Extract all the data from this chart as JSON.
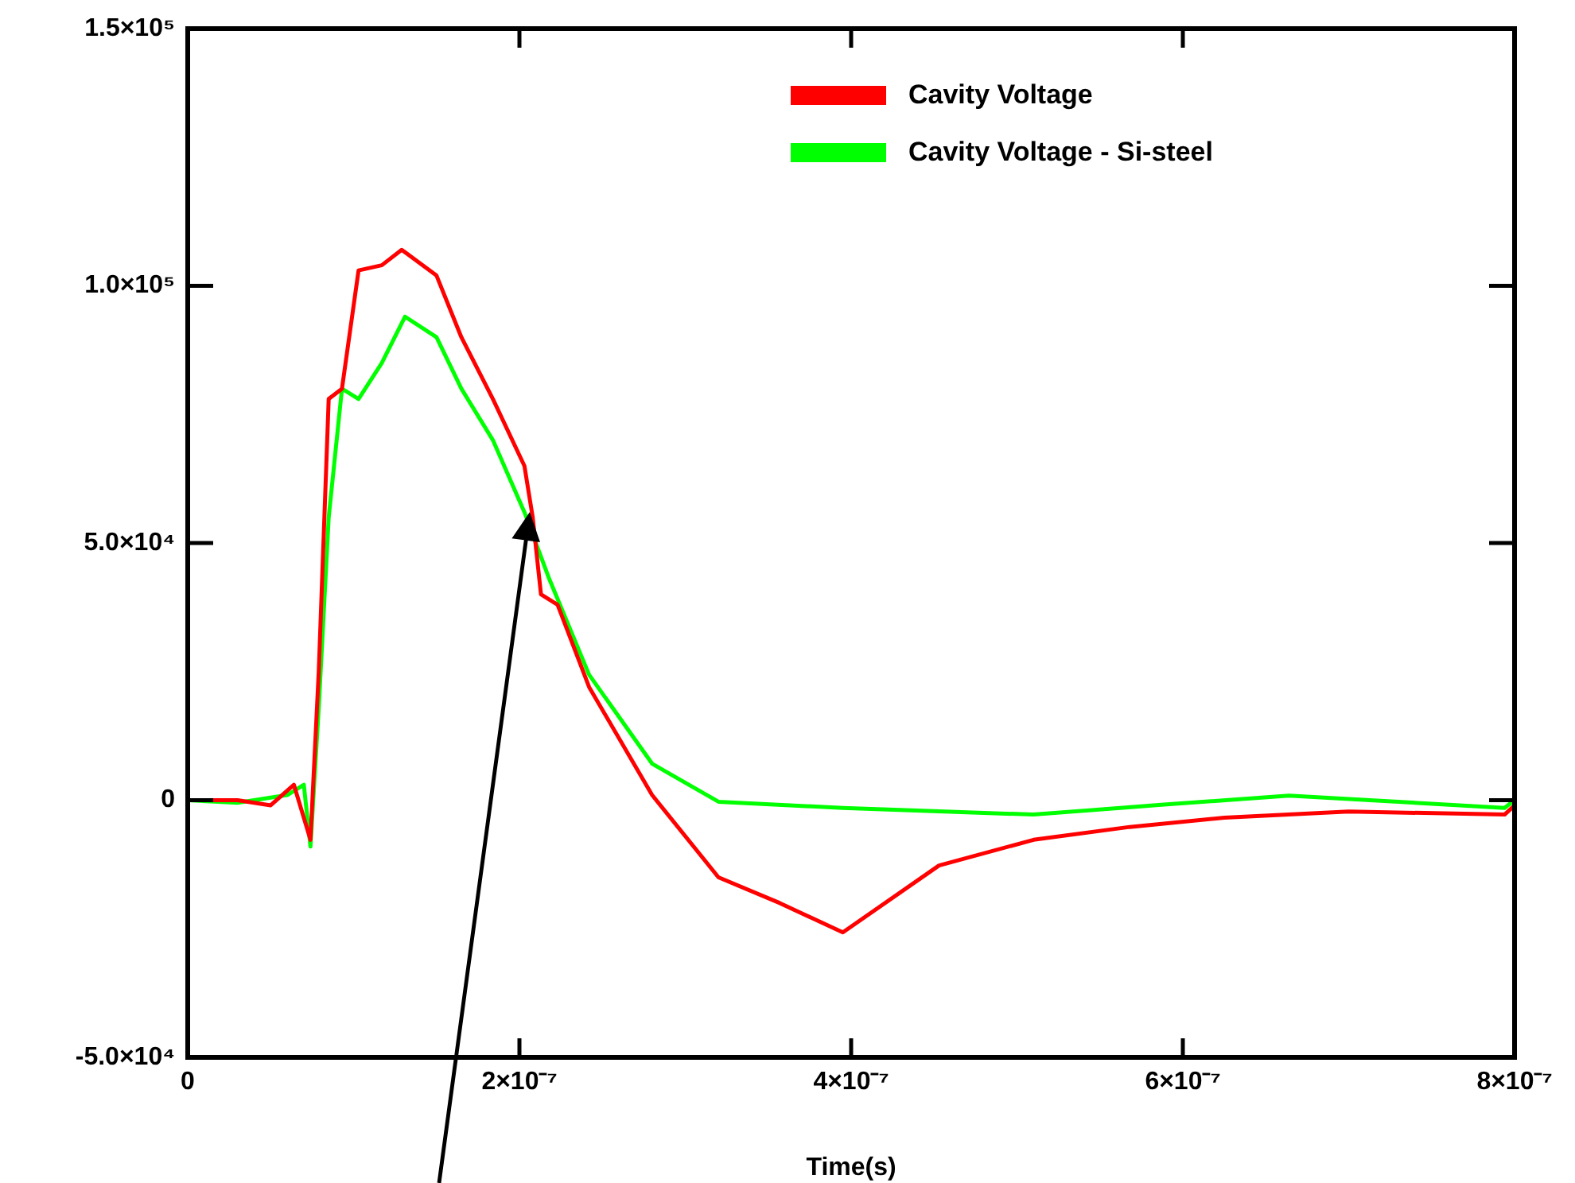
{
  "chart_data": {
    "type": "line",
    "xlabel": "Time(s)",
    "xlim": [
      0,
      8e-07
    ],
    "xticks": [
      0,
      {
        "value": 2e-07,
        "label": "2×10⁻⁷"
      },
      {
        "value": 4e-07,
        "label": "4×10⁻⁷"
      },
      {
        "value": 6e-07,
        "label": "6×10⁻⁷"
      },
      {
        "value": 8e-07,
        "label": "8×10⁻⁷"
      }
    ],
    "ylim": [
      -50000,
      150000
    ],
    "yticks": [
      {
        "value": -50000,
        "label": "-5.0×10⁴"
      },
      0,
      {
        "value": 50000,
        "label": "5.0×10⁴"
      },
      {
        "value": 100000,
        "label": "1.0×10⁵"
      },
      {
        "value": 150000,
        "label": "1.5×10⁵"
      }
    ],
    "grid": false,
    "legend": "top right",
    "marker": "none",
    "line_style": "solid",
    "series": [
      {
        "name": "Cavity Voltage",
        "color": "#ff0000",
        "x": [
          0,
          3e-08,
          5e-08,
          6.4e-08,
          7.4e-08,
          7.9e-08,
          8.5e-08,
          9.3e-08,
          1.03e-07,
          1.17e-07,
          1.29e-07,
          1.5e-07,
          1.65e-07,
          1.84e-07,
          2.03e-07,
          2.08e-07,
          2.13e-07,
          2.23e-07,
          2.42e-07,
          2.8e-07,
          3.2e-07,
          3.57e-07,
          3.95e-07,
          4.53e-07,
          5.1e-07,
          5.68e-07,
          6.25e-07,
          7e-07,
          7.94e-07,
          8e-07
        ],
        "values": [
          0,
          0,
          -1000,
          3000,
          -7700,
          25000,
          78000,
          80000,
          103000,
          104000,
          107000,
          102000,
          90000,
          78000,
          65000,
          55000,
          40000,
          38000,
          22000,
          1000,
          -15000,
          -20000,
          -25700,
          -12700,
          -7700,
          -5200,
          -3400,
          -2200,
          -2800,
          -1000
        ]
      },
      {
        "name": "Cavity Voltage - Si-steel",
        "color": "#00ff00",
        "x": [
          0,
          3e-08,
          6e-08,
          7e-08,
          7.4e-08,
          7.9e-08,
          8.5e-08,
          9.3e-08,
          1.03e-07,
          1.17e-07,
          1.31e-07,
          1.5e-07,
          1.65e-07,
          1.84e-07,
          2.03e-07,
          2.18e-07,
          2.42e-07,
          2.8e-07,
          3.2e-07,
          3.95e-07,
          5.1e-07,
          5.87e-07,
          6.64e-07,
          7.94e-07,
          8e-07
        ],
        "values": [
          0,
          -500,
          1000,
          3000,
          -9000,
          18000,
          55000,
          80000,
          78000,
          85000,
          94000,
          90000,
          80000,
          70000,
          56000,
          43000,
          24400,
          7100,
          -300,
          -1500,
          -2800,
          -900,
          900,
          -1500,
          0
        ]
      }
    ]
  }
}
